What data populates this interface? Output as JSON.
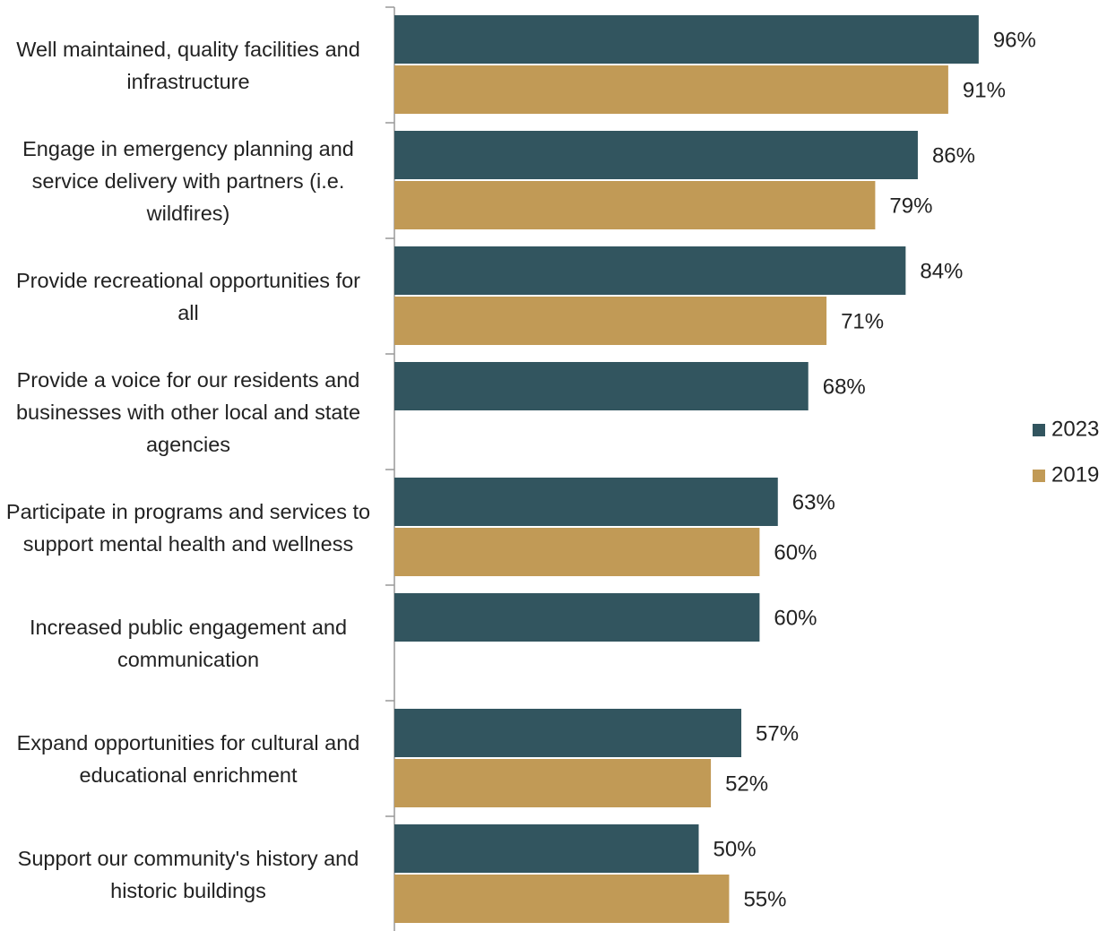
{
  "chart_data": {
    "type": "bar",
    "orientation": "horizontal",
    "categories": [
      "Well maintained, quality facilities and infrastructure",
      "Engage in emergency planning and service delivery with partners (i.e. wildfires)",
      "Provide recreational opportunities for all",
      "Provide a voice for our residents and businesses with other local and state agencies",
      "Participate in programs and services to support mental health and wellness",
      "Increased public engagement and communication",
      "Expand opportunities for cultural and educational enrichment",
      "Support our community's history and historic buildings"
    ],
    "series": [
      {
        "name": "2023",
        "color": "#32555f",
        "values": [
          96,
          86,
          84,
          68,
          63,
          60,
          57,
          50
        ],
        "value_labels": [
          "96%",
          "86%",
          "84%",
          "68%",
          "63%",
          "60%",
          "57%",
          "50%"
        ]
      },
      {
        "name": "2019",
        "color": "#c19a56",
        "values": [
          91,
          79,
          71,
          null,
          60,
          null,
          52,
          55
        ],
        "value_labels": [
          "91%",
          "79%",
          "71%",
          null,
          "60%",
          null,
          "52%",
          "55%"
        ]
      }
    ],
    "xlim": [
      0,
      100
    ],
    "legend": "right"
  }
}
